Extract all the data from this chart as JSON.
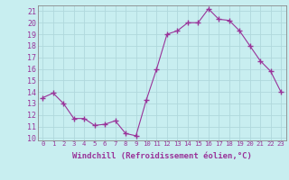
{
  "x": [
    0,
    1,
    2,
    3,
    4,
    5,
    6,
    7,
    8,
    9,
    10,
    11,
    12,
    13,
    14,
    15,
    16,
    17,
    18,
    19,
    20,
    21,
    22,
    23
  ],
  "y": [
    13.5,
    13.9,
    13.0,
    11.7,
    11.7,
    11.1,
    11.2,
    11.5,
    10.4,
    10.2,
    13.3,
    16.0,
    19.0,
    19.3,
    20.0,
    20.0,
    21.2,
    20.3,
    20.2,
    19.3,
    18.0,
    16.7,
    15.8,
    14.0
  ],
  "line_color": "#993399",
  "marker": "+",
  "marker_size": 4,
  "bg_color": "#c8eef0",
  "grid_color": "#b0d8dc",
  "xlabel": "Windchill (Refroidissement éolien,°C)",
  "ylabel_ticks": [
    10,
    11,
    12,
    13,
    14,
    15,
    16,
    17,
    18,
    19,
    20,
    21
  ],
  "ylim": [
    9.8,
    21.5
  ],
  "xlim": [
    -0.5,
    23.5
  ],
  "tick_color": "#993399",
  "label_color": "#993399",
  "xlabel_fontsize": 6.5,
  "ytick_fontsize": 6.0,
  "xtick_fontsize": 5.2
}
